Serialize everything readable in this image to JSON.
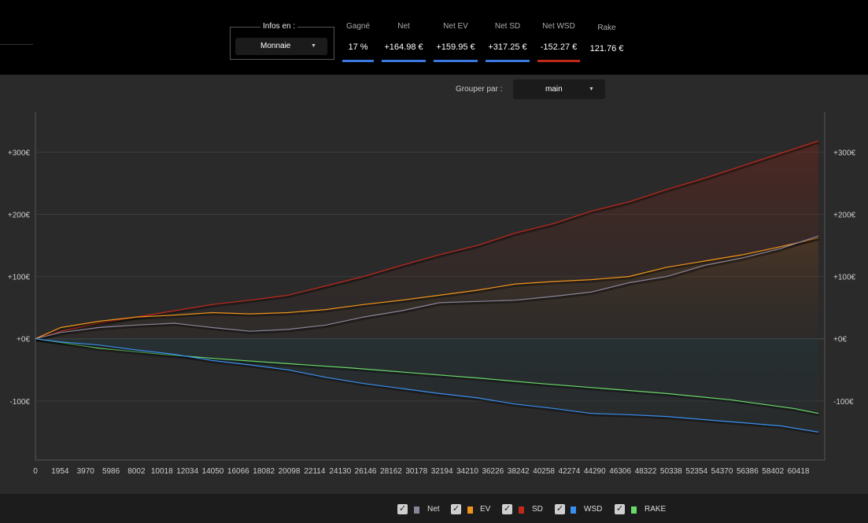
{
  "header": {
    "infos_label": "Infos en :",
    "infos_select": "Monnaie",
    "stats": [
      {
        "label": "Gagné",
        "value": "17 %",
        "color": "#3a78e0"
      },
      {
        "label": "Net",
        "value": "+164.98 €",
        "color": "#3a78e0"
      },
      {
        "label": "Net EV",
        "value": "+159.95 €",
        "color": "#3a78e0"
      },
      {
        "label": "Net SD",
        "value": "+317.25 €",
        "color": "#3a78e0"
      },
      {
        "label": "Net WSD",
        "value": "-152.27 €",
        "color": "#c0281c"
      }
    ],
    "rake": {
      "label": "Rake",
      "value": "121.76 €"
    }
  },
  "grouper": {
    "label": "Grouper par :",
    "select": "main"
  },
  "legend": [
    {
      "label": "Net",
      "color": "#8a8498"
    },
    {
      "label": "EV",
      "color": "#f0941a"
    },
    {
      "label": "SD",
      "color": "#c0281c"
    },
    {
      "label": "WSD",
      "color": "#3a8ef0"
    },
    {
      "label": "RAKE",
      "color": "#6ad86a"
    }
  ],
  "chart_data": {
    "type": "line",
    "x_ticks": [
      "0",
      "1954",
      "3970",
      "5986",
      "8002",
      "10018",
      "12034",
      "14050",
      "16066",
      "18082",
      "20098",
      "22114",
      "24130",
      "26146",
      "28162",
      "30178",
      "32194",
      "34210",
      "36226",
      "38242",
      "40258",
      "42274",
      "44290",
      "46306",
      "48322",
      "50338",
      "52354",
      "54370",
      "56386",
      "58402",
      "60418"
    ],
    "y_ticks": [
      "+300€",
      "+200€",
      "+100€",
      "+0€",
      "-100€"
    ],
    "y_tick_values": [
      300,
      200,
      100,
      0,
      -100
    ],
    "xlim": [
      0,
      62500
    ],
    "ylim": [
      -195,
      365
    ],
    "grid": true,
    "series": [
      {
        "name": "SD",
        "color": "#c0281c",
        "x": [
          0,
          2000,
          5000,
          8000,
          11000,
          14000,
          17000,
          20000,
          23000,
          26000,
          29000,
          32000,
          35000,
          38000,
          41000,
          44000,
          47000,
          50000,
          53000,
          56000,
          59000,
          62000
        ],
        "y": [
          0,
          12,
          25,
          35,
          45,
          55,
          62,
          70,
          85,
          100,
          118,
          135,
          150,
          170,
          185,
          205,
          220,
          240,
          258,
          278,
          298,
          318
        ]
      },
      {
        "name": "EV",
        "color": "#f0941a",
        "x": [
          0,
          2000,
          5000,
          8000,
          11000,
          14000,
          17000,
          20000,
          23000,
          26000,
          29000,
          32000,
          35000,
          38000,
          41000,
          44000,
          47000,
          50000,
          53000,
          56000,
          59000,
          62000
        ],
        "y": [
          0,
          18,
          28,
          35,
          38,
          42,
          40,
          42,
          47,
          55,
          62,
          70,
          78,
          88,
          92,
          95,
          100,
          115,
          125,
          135,
          148,
          162
        ]
      },
      {
        "name": "Net",
        "color": "#8a8498",
        "x": [
          0,
          2000,
          5000,
          8000,
          11000,
          14000,
          17000,
          20000,
          23000,
          26000,
          29000,
          32000,
          35000,
          38000,
          41000,
          44000,
          47000,
          50000,
          53000,
          56000,
          59000,
          62000
        ],
        "y": [
          0,
          10,
          18,
          22,
          25,
          18,
          12,
          15,
          22,
          35,
          45,
          58,
          60,
          62,
          68,
          75,
          90,
          100,
          118,
          130,
          145,
          165
        ]
      },
      {
        "name": "RAKE",
        "color": "#6ad86a",
        "x": [
          0,
          5000,
          10000,
          15000,
          20000,
          25000,
          30000,
          35000,
          40000,
          45000,
          50000,
          55000,
          60000,
          62000
        ],
        "y": [
          0,
          -15,
          -25,
          -33,
          -40,
          -47,
          -55,
          -63,
          -72,
          -80,
          -88,
          -98,
          -112,
          -120
        ]
      },
      {
        "name": "WSD",
        "color": "#3a8ef0",
        "x": [
          0,
          2000,
          5000,
          8000,
          11000,
          14000,
          17000,
          20000,
          23000,
          26000,
          29000,
          32000,
          35000,
          38000,
          41000,
          44000,
          47000,
          50000,
          53000,
          56000,
          59000,
          62000
        ],
        "y": [
          0,
          -5,
          -10,
          -18,
          -25,
          -35,
          -42,
          -50,
          -62,
          -72,
          -80,
          -88,
          -95,
          -105,
          -112,
          -120,
          -122,
          -125,
          -130,
          -135,
          -140,
          -150
        ]
      }
    ]
  }
}
